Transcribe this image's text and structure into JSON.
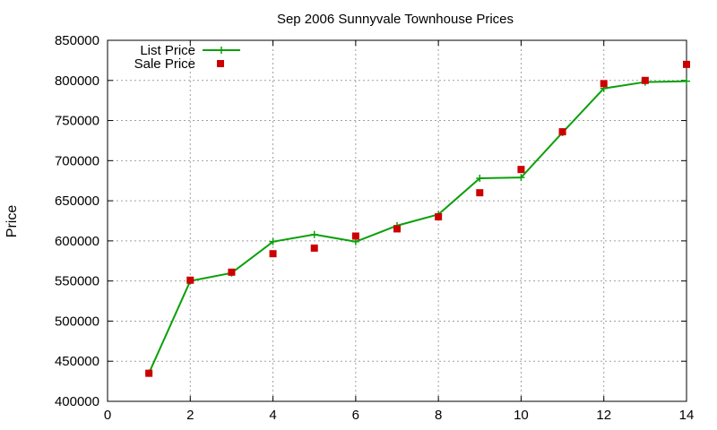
{
  "chart_data": {
    "type": "line",
    "title": "Sep 2006 Sunnyvale Townhouse Prices",
    "xlabel": "",
    "ylabel": "Price",
    "xlim": [
      0,
      14
    ],
    "ylim": [
      400000,
      850000
    ],
    "x_ticks": [
      0,
      2,
      4,
      6,
      8,
      10,
      12,
      14
    ],
    "y_ticks": [
      400000,
      450000,
      500000,
      550000,
      600000,
      650000,
      700000,
      750000,
      800000,
      850000
    ],
    "grid": true,
    "legend_position": "top-left",
    "series": [
      {
        "name": "List Price",
        "style": "lines+crosses",
        "color": "#0aa00a",
        "x": [
          1,
          2,
          3,
          4,
          5,
          6,
          7,
          8,
          9,
          10,
          11,
          12,
          13,
          14
        ],
        "y": [
          435000,
          550000,
          560000,
          599000,
          608000,
          599000,
          619000,
          633000,
          678000,
          679000,
          735000,
          790000,
          798000,
          799000
        ]
      },
      {
        "name": "Sale Price",
        "style": "squares",
        "color": "#cc0000",
        "x": [
          1,
          2,
          3,
          4,
          5,
          6,
          7,
          8,
          9,
          10,
          11,
          12,
          13,
          14
        ],
        "y": [
          435000,
          551000,
          561000,
          584000,
          591000,
          606000,
          615000,
          630000,
          660000,
          689000,
          736000,
          796000,
          800000,
          820000
        ]
      }
    ]
  }
}
